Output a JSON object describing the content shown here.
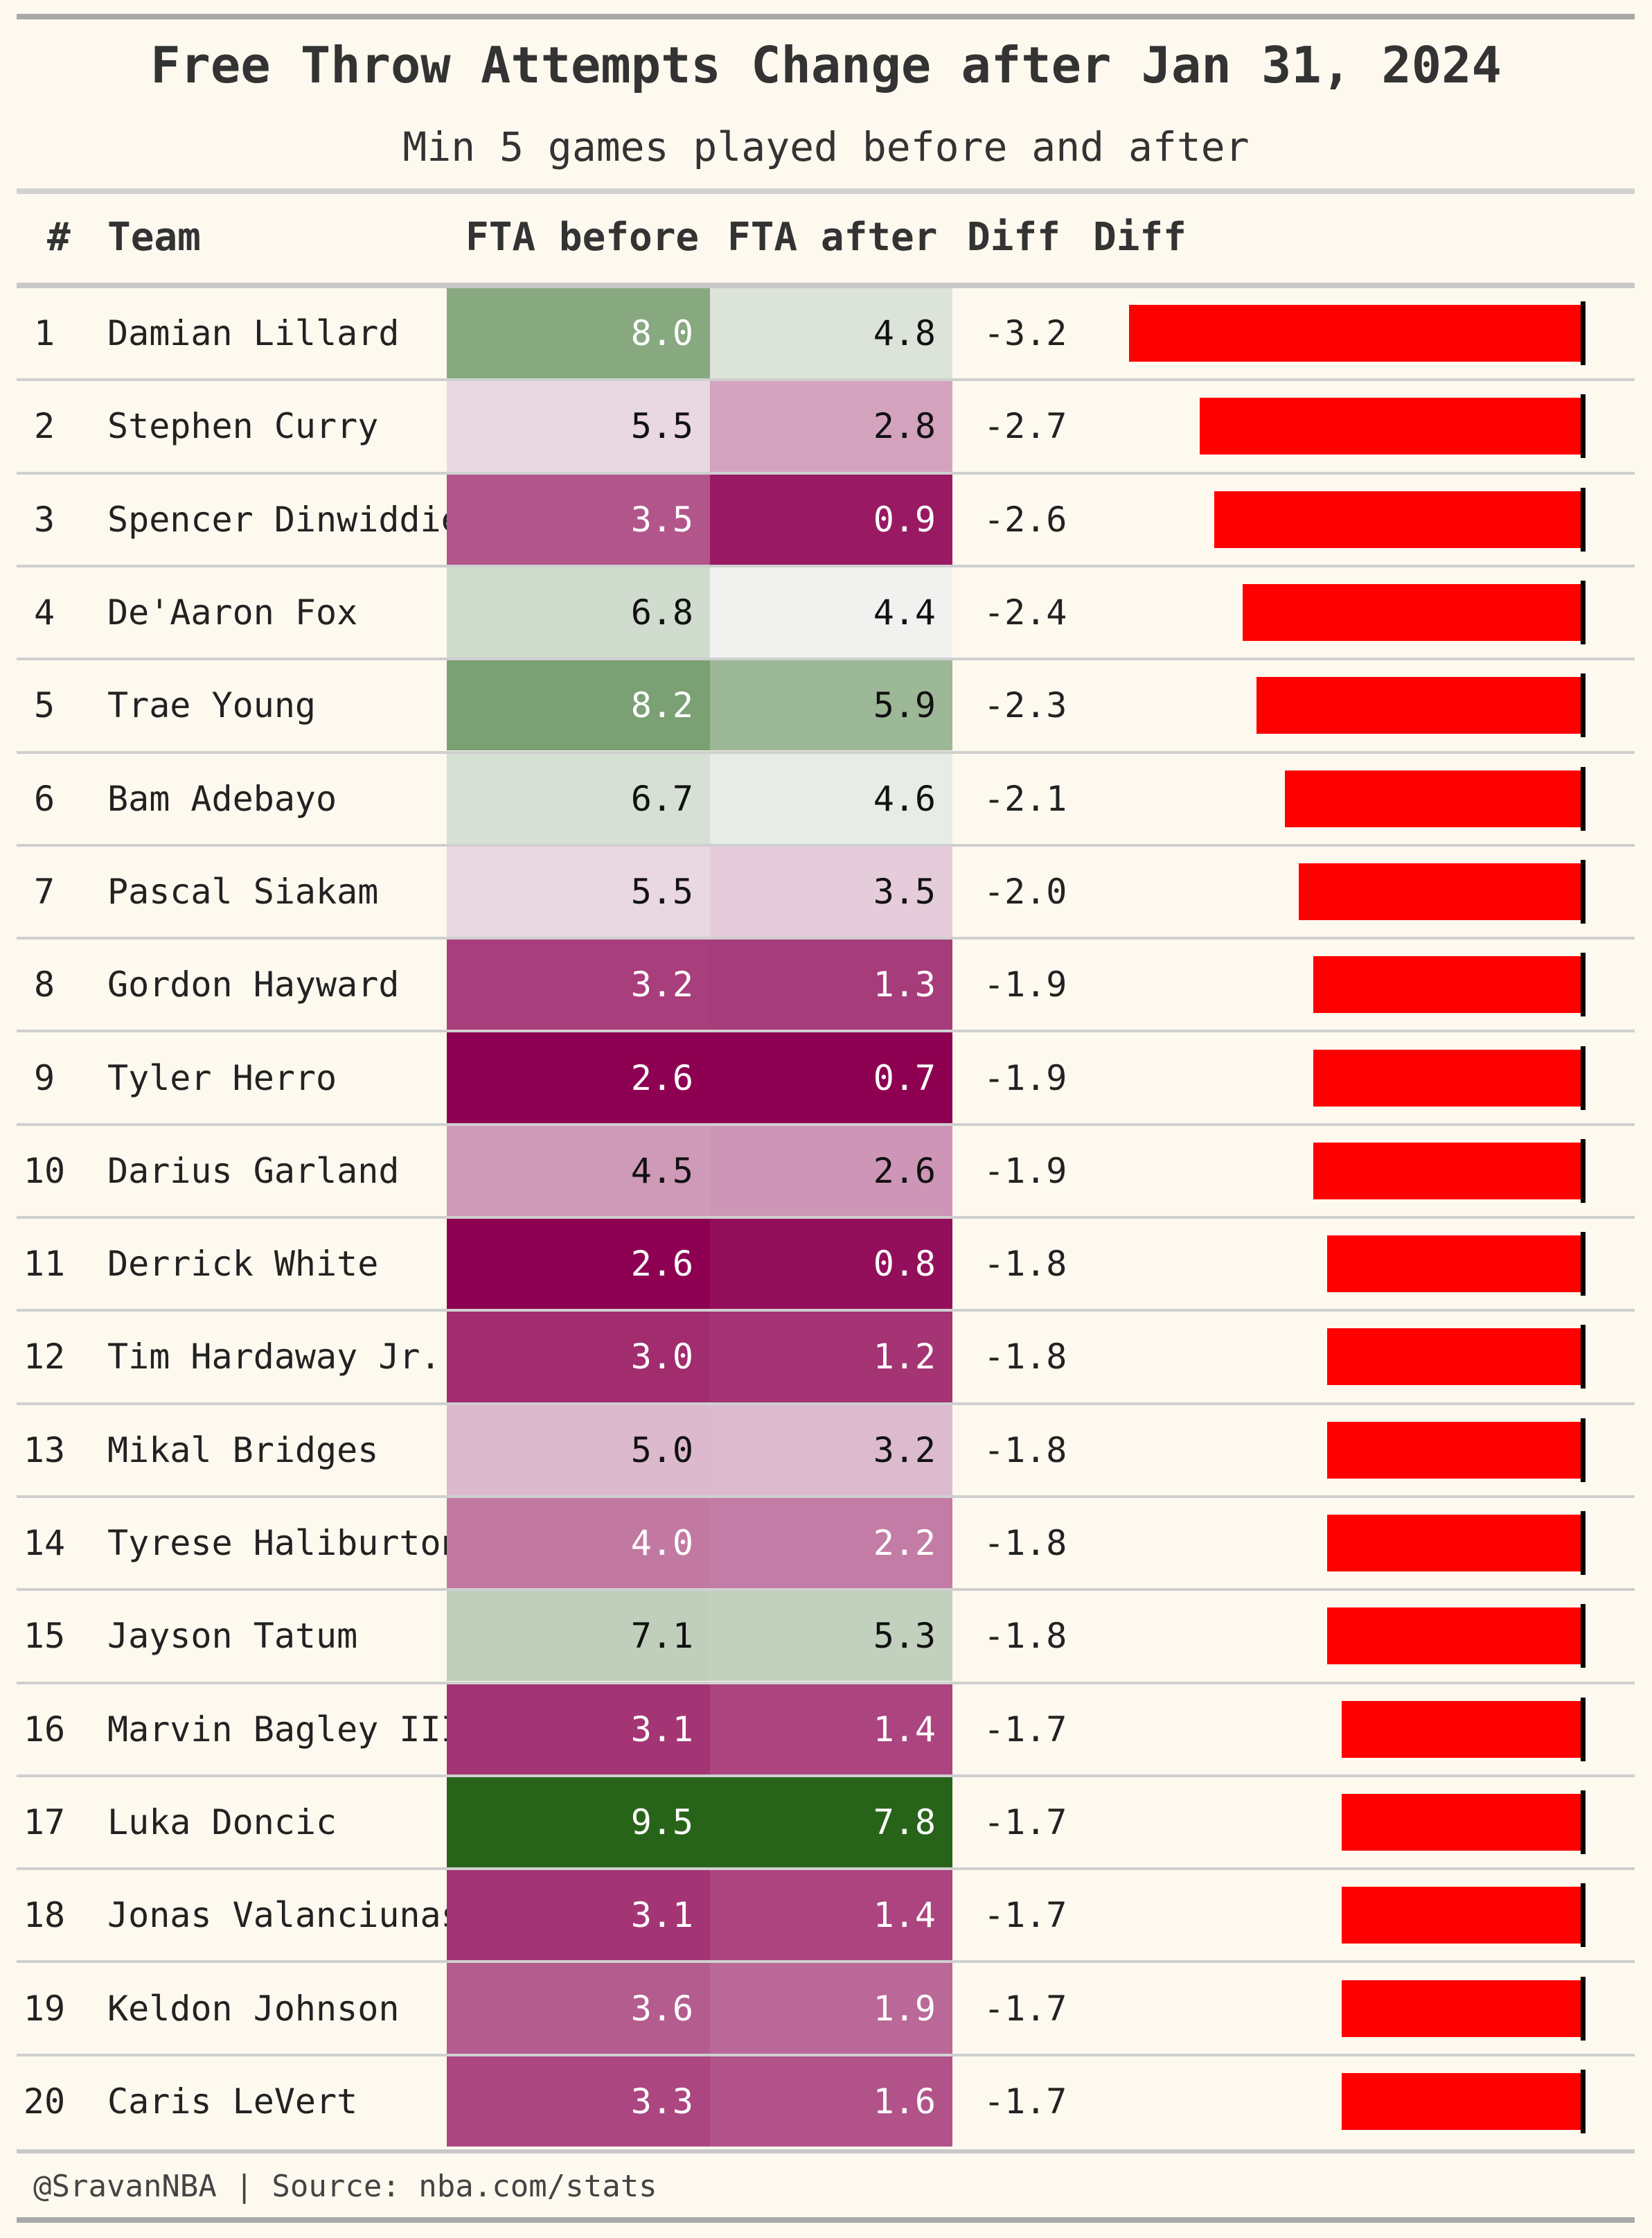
{
  "title": "Free Throw Attempts Change after Jan 31, 2024",
  "subtitle": "Min 5 games played before and after",
  "columns": {
    "rank": "#",
    "team": "Team",
    "fta_before": "FTA before",
    "fta_after": "FTA after",
    "diff": "Diff",
    "diff_bar": "Diff"
  },
  "footer": "@SravanNBA | Source: nba.com/stats",
  "colors": {
    "background": "#fdf9ef",
    "bar": "#ff0000",
    "scale_low": "#8e0152",
    "scale_mid": "#f7f7f7",
    "scale_high": "#276419"
  },
  "chart_data": {
    "type": "table",
    "bar_series": "diff",
    "bar_xlim": [
      -3.2,
      0
    ],
    "rows": [
      {
        "rank": "1",
        "player": "Damian Lillard",
        "fta_before": "8.0",
        "fta_after": "4.8",
        "diff": "-3.2"
      },
      {
        "rank": "2",
        "player": "Stephen Curry",
        "fta_before": "5.5",
        "fta_after": "2.8",
        "diff": "-2.7"
      },
      {
        "rank": "3",
        "player": "Spencer Dinwiddie",
        "fta_before": "3.5",
        "fta_after": "0.9",
        "diff": "-2.6"
      },
      {
        "rank": "4",
        "player": "De'Aaron Fox",
        "fta_before": "6.8",
        "fta_after": "4.4",
        "diff": "-2.4"
      },
      {
        "rank": "5",
        "player": "Trae Young",
        "fta_before": "8.2",
        "fta_after": "5.9",
        "diff": "-2.3"
      },
      {
        "rank": "6",
        "player": "Bam Adebayo",
        "fta_before": "6.7",
        "fta_after": "4.6",
        "diff": "-2.1"
      },
      {
        "rank": "7",
        "player": "Pascal Siakam",
        "fta_before": "5.5",
        "fta_after": "3.5",
        "diff": "-2.0"
      },
      {
        "rank": "8",
        "player": "Gordon Hayward",
        "fta_before": "3.2",
        "fta_after": "1.3",
        "diff": "-1.9"
      },
      {
        "rank": "9",
        "player": "Tyler Herro",
        "fta_before": "2.6",
        "fta_after": "0.7",
        "diff": "-1.9"
      },
      {
        "rank": "10",
        "player": "Darius Garland",
        "fta_before": "4.5",
        "fta_after": "2.6",
        "diff": "-1.9"
      },
      {
        "rank": "11",
        "player": "Derrick White",
        "fta_before": "2.6",
        "fta_after": "0.8",
        "diff": "-1.8"
      },
      {
        "rank": "12",
        "player": "Tim Hardaway Jr.",
        "fta_before": "3.0",
        "fta_after": "1.2",
        "diff": "-1.8"
      },
      {
        "rank": "13",
        "player": "Mikal Bridges",
        "fta_before": "5.0",
        "fta_after": "3.2",
        "diff": "-1.8"
      },
      {
        "rank": "14",
        "player": "Tyrese Haliburton",
        "fta_before": "4.0",
        "fta_after": "2.2",
        "diff": "-1.8"
      },
      {
        "rank": "15",
        "player": "Jayson Tatum",
        "fta_before": "7.1",
        "fta_after": "5.3",
        "diff": "-1.8"
      },
      {
        "rank": "16",
        "player": "Marvin Bagley III",
        "fta_before": "3.1",
        "fta_after": "1.4",
        "diff": "-1.7"
      },
      {
        "rank": "17",
        "player": "Luka Doncic",
        "fta_before": "9.5",
        "fta_after": "7.8",
        "diff": "-1.7"
      },
      {
        "rank": "18",
        "player": "Jonas Valanciunas",
        "fta_before": "3.1",
        "fta_after": "1.4",
        "diff": "-1.7"
      },
      {
        "rank": "19",
        "player": "Keldon Johnson",
        "fta_before": "3.6",
        "fta_after": "1.9",
        "diff": "-1.7"
      },
      {
        "rank": "20",
        "player": "Caris LeVert",
        "fta_before": "3.3",
        "fta_after": "1.6",
        "diff": "-1.7"
      }
    ]
  }
}
